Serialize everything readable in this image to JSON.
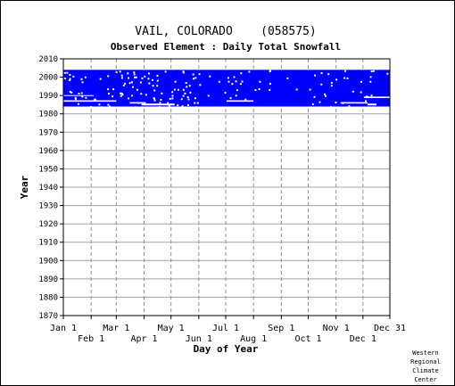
{
  "chart_data": {
    "type": "heatmap",
    "title": "VAIL, COLORADO    (058575)",
    "subtitle": "Observed Element : Daily Total Snowfall",
    "xlabel": "Day of Year",
    "ylabel": "Year",
    "x_ticks_top": [
      "Jan 1",
      "Mar 1",
      "May 1",
      "Jul 1",
      "Sep 1",
      "Nov 1",
      "Dec 31"
    ],
    "x_ticks_bottom": [
      "Feb 1",
      "Apr 1",
      "Jun 1",
      "Aug 1",
      "Oct 1",
      "Dec 1"
    ],
    "x_tick_days": [
      1,
      32,
      60,
      91,
      121,
      152,
      182,
      213,
      244,
      274,
      305,
      335,
      365
    ],
    "xlim": [
      1,
      365
    ],
    "ylim": [
      1870,
      2010
    ],
    "y_ticks": [
      1870,
      1880,
      1890,
      1900,
      1910,
      1920,
      1930,
      1940,
      1950,
      1960,
      1970,
      1980,
      1990,
      2000,
      2010
    ],
    "grid": true,
    "data_color": "#0000ff",
    "observed_periods": [
      {
        "name": "",
        "start_day": 1,
        "end_day": 365,
        "start_year": 1984,
        "end_year": 2004
      }
    ],
    "missing_patches": [
      {
        "day_start": 1,
        "day_end": 60,
        "year_start": 1986.6,
        "year_end": 1987.4
      },
      {
        "day_start": 1,
        "day_end": 35,
        "year_start": 1989.8,
        "year_end": 1990.2
      },
      {
        "day_start": 75,
        "day_end": 93,
        "year_start": 1985.6,
        "year_end": 1986.4
      },
      {
        "day_start": 88,
        "day_end": 125,
        "year_start": 1984.6,
        "year_end": 1985.6
      },
      {
        "day_start": 183,
        "day_end": 213,
        "year_start": 1986.6,
        "year_end": 1987.4
      },
      {
        "day_start": 310,
        "day_end": 340,
        "year_start": 1985.6,
        "year_end": 1986.4
      },
      {
        "day_start": 336,
        "day_end": 365,
        "year_start": 1988.6,
        "year_end": 1989.4
      },
      {
        "day_start": 340,
        "day_end": 350,
        "year_start": 1984.6,
        "year_end": 1985.6
      }
    ]
  },
  "credit": [
    "Western",
    "Regional",
    "Climate",
    "Center"
  ]
}
